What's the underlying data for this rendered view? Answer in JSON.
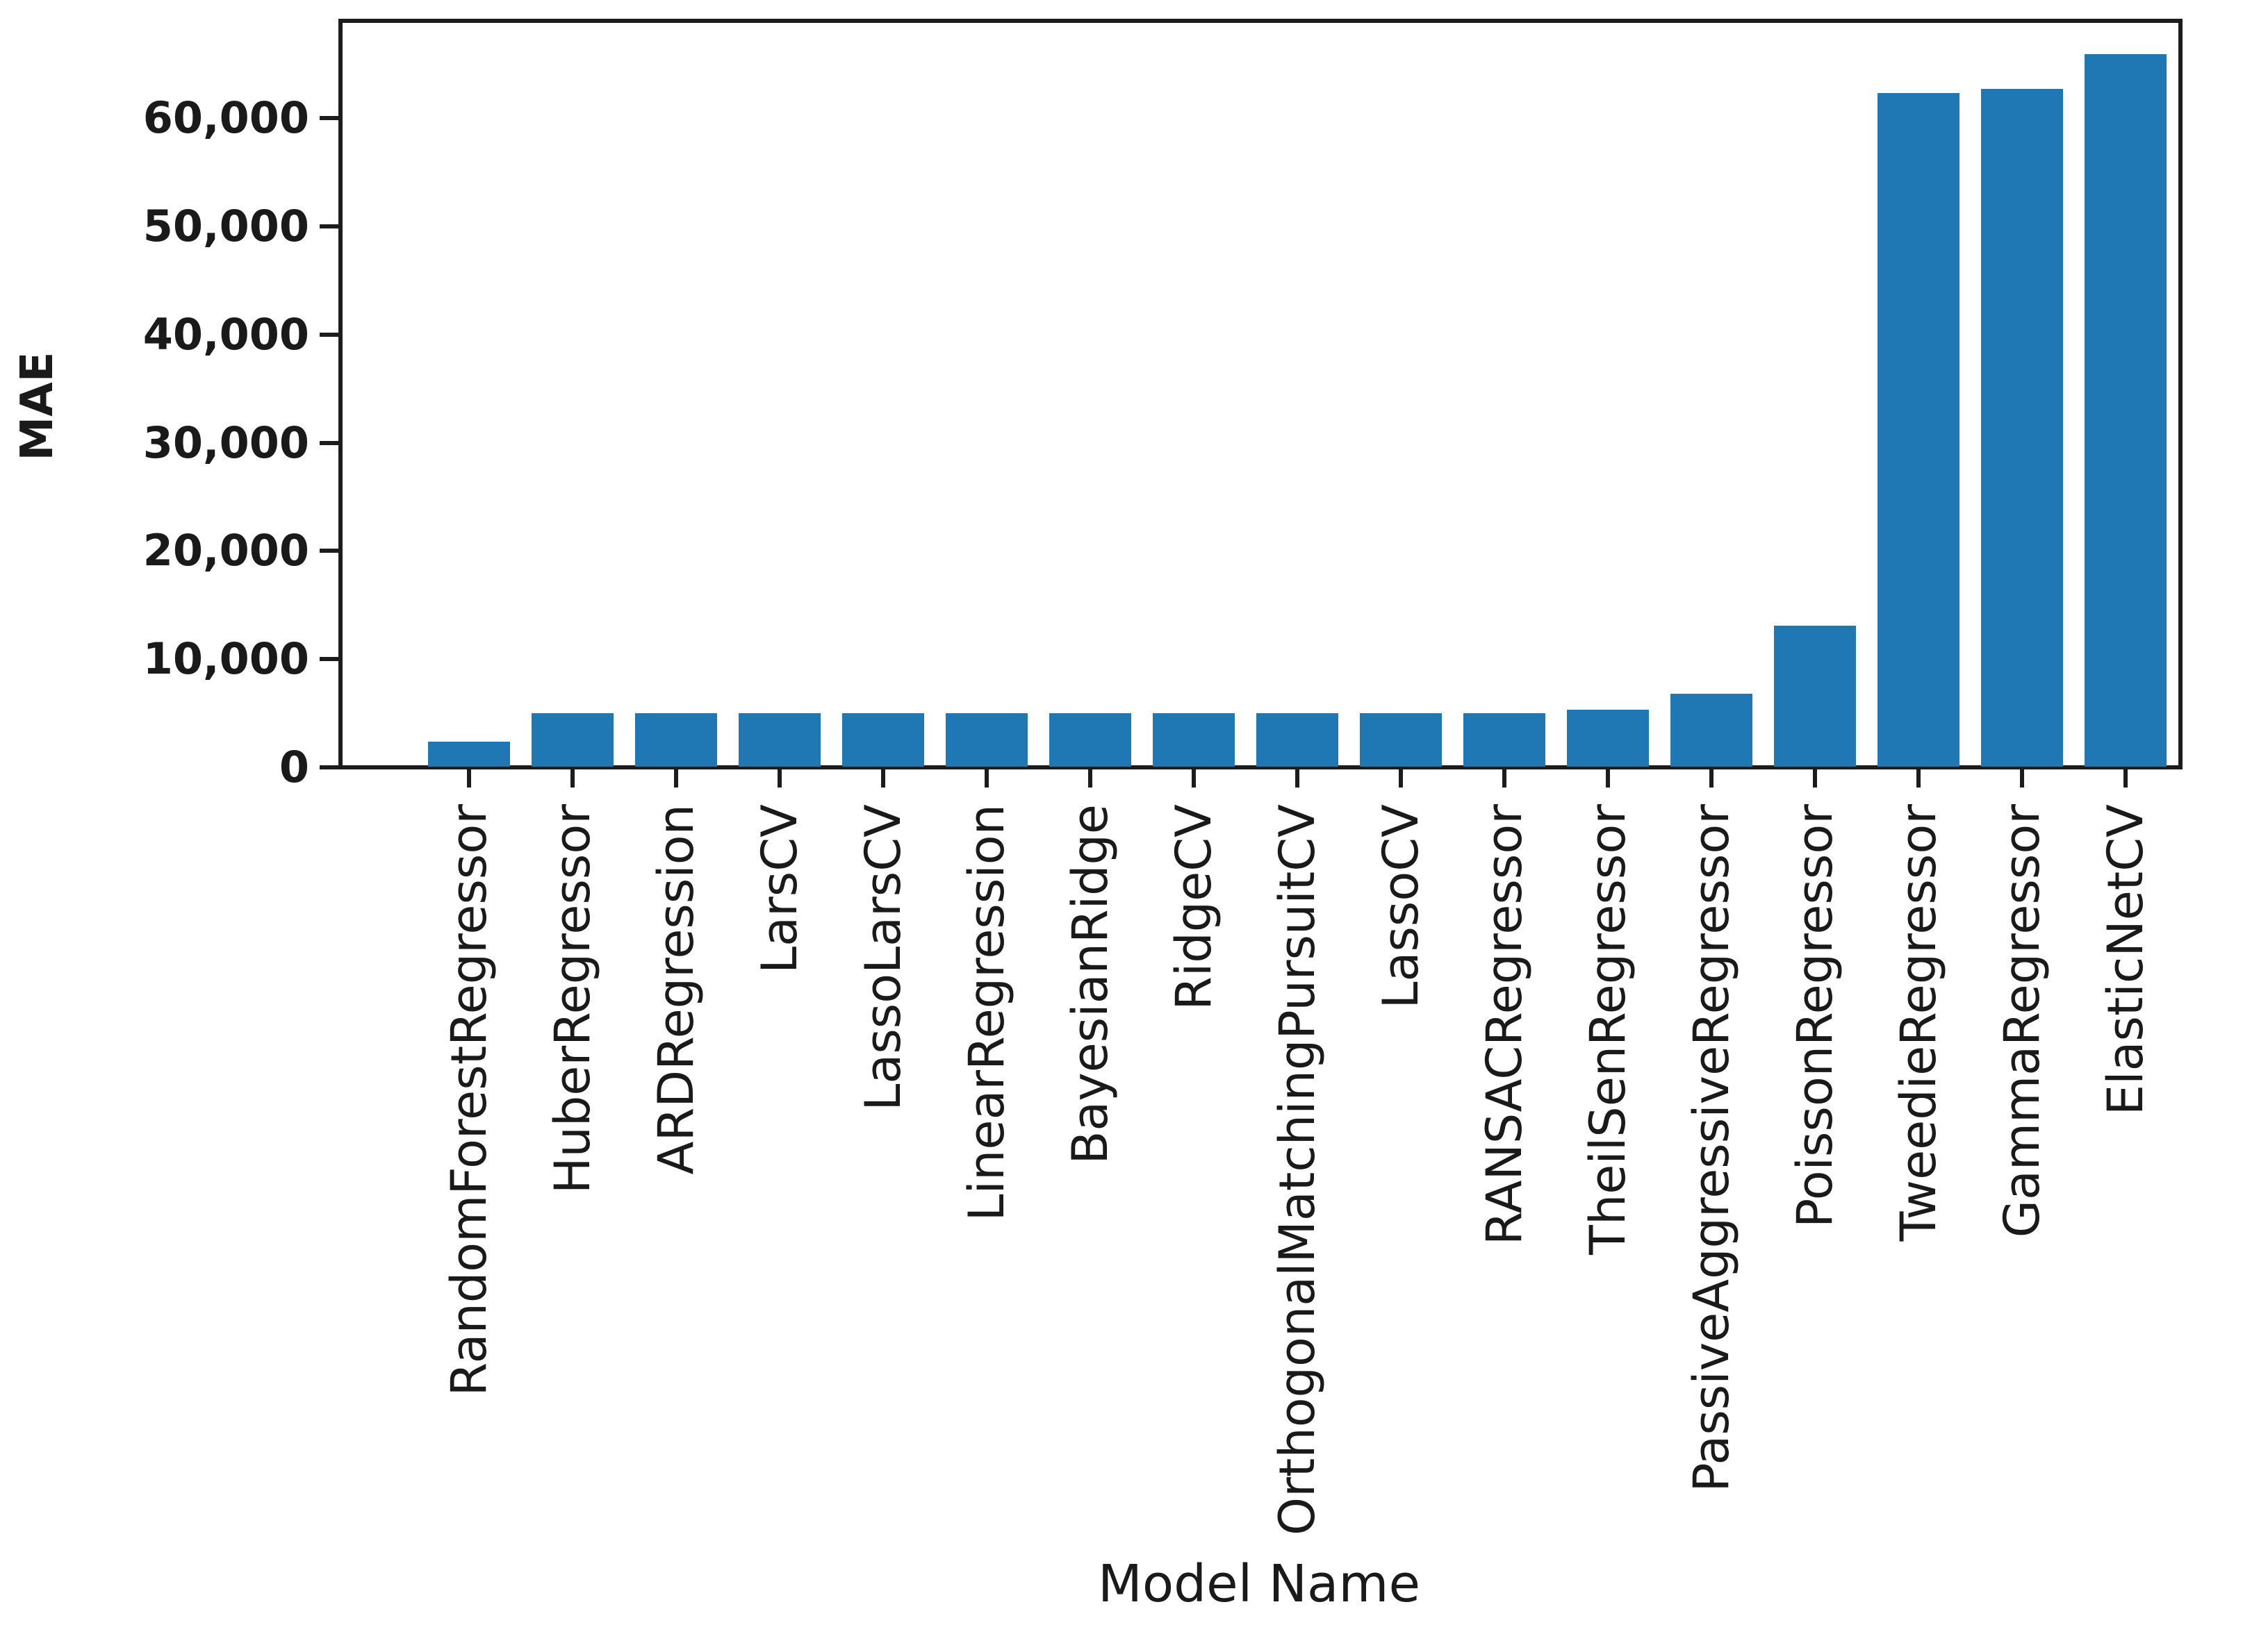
{
  "figure": {
    "background": "#ffffff",
    "text_color": "#1a1a1a",
    "spine_color": "#1c1c1c"
  },
  "chart_data": {
    "type": "bar",
    "title": "",
    "xlabel": "Model Name",
    "ylabel": "MAE",
    "bar_color": "#1f77b4",
    "categories": [
      "RandomForestRegressor",
      "HuberRegressor",
      "ARDRegression",
      "LarsCV",
      "LassoLarsCV",
      "LinearRegression",
      "BayesianRidge",
      "RidgeCV",
      "OrthogonalMatchingPursuitCV",
      "LassoCV",
      "RANSACRegressor",
      "TheilSenRegressor",
      "PassiveAggressiveRegressor",
      "PoissonRegressor",
      "TweedieRegressor",
      "GammaRegressor",
      "ElasticNetCV"
    ],
    "values": [
      2400,
      5000,
      5000,
      5000,
      5000,
      5000,
      5000,
      5000,
      5000,
      5000,
      5000,
      5300,
      6800,
      13100,
      62300,
      62700,
      65900
    ],
    "ylim": [
      0,
      69000
    ],
    "yticks": [
      0,
      10000,
      20000,
      30000,
      40000,
      50000,
      60000
    ],
    "ytick_labels": [
      "0",
      "10,000",
      "20,000",
      "30,000",
      "40,000",
      "50,000",
      "60,000"
    ],
    "grid": false,
    "legend": null,
    "x_labels_rotation": 90,
    "sorted": "ascending by MAE"
  }
}
